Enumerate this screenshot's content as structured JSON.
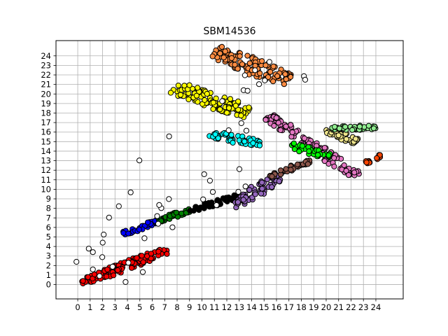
{
  "chart_data": {
    "type": "scatter",
    "title": "SBM14536",
    "xlabel": "",
    "ylabel": "",
    "xlim": [
      -1.75,
      26.2
    ],
    "ylim": [
      -1.5,
      25.6
    ],
    "x_ticks": [
      0,
      1,
      2,
      3,
      4,
      5,
      6,
      7,
      8,
      9,
      10,
      11,
      12,
      13,
      14,
      15,
      16,
      17,
      18,
      19,
      20,
      21,
      22,
      23,
      24
    ],
    "y_ticks": [
      0,
      1,
      2,
      3,
      4,
      5,
      6,
      7,
      8,
      9,
      10,
      11,
      12,
      13,
      14,
      15,
      16,
      17,
      18,
      19,
      20,
      21,
      22,
      23,
      24
    ],
    "grid": true,
    "legend": "none",
    "marker_edge_color": "#000000",
    "clusters": [
      {
        "color": "#ff0000",
        "x0": 0.3,
        "y0": 0.2,
        "x1": 7.2,
        "y1": 3.6,
        "width": 1.0,
        "points": 130
      },
      {
        "color": "#0000ff",
        "x0": 3.6,
        "y0": 5.3,
        "x1": 7.0,
        "y1": 6.9,
        "width": 0.55,
        "points": 45
      },
      {
        "color": "#008000",
        "x0": 6.5,
        "y0": 6.7,
        "x1": 9.2,
        "y1": 7.9,
        "width": 0.55,
        "points": 35
      },
      {
        "color": "#000000",
        "x0": 9.0,
        "y0": 7.8,
        "x1": 13.0,
        "y1": 9.3,
        "width": 0.6,
        "points": 45
      },
      {
        "color": "#9467bd",
        "x0": 12.6,
        "y0": 8.2,
        "x1": 16.2,
        "y1": 11.4,
        "width": 1.3,
        "points": 70
      },
      {
        "color": "#8c564b",
        "x0": 15.5,
        "y0": 11.4,
        "x1": 18.8,
        "y1": 13.0,
        "width": 0.55,
        "points": 35
      },
      {
        "color": "#e377c2",
        "x0": 15.3,
        "y0": 17.7,
        "x1": 22.5,
        "y1": 11.4,
        "width": 1.3,
        "points": 120
      },
      {
        "color": "#00ff00",
        "x0": 17.2,
        "y0": 14.6,
        "x1": 20.5,
        "y1": 13.4,
        "width": 0.9,
        "points": 45
      },
      {
        "color": "#f0e68c",
        "x0": 20.0,
        "y0": 16.2,
        "x1": 22.5,
        "y1": 15.0,
        "width": 0.9,
        "points": 40
      },
      {
        "color": "#90ee90",
        "x0": 20.4,
        "y0": 16.4,
        "x1": 24.1,
        "y1": 16.5,
        "width": 0.5,
        "points": 45
      },
      {
        "color": "#ff4500",
        "x0": 23.2,
        "y0": 12.8,
        "x1": 24.5,
        "y1": 13.6,
        "width": 0.4,
        "points": 20
      },
      {
        "color": "#00ffff",
        "x0": 10.6,
        "y0": 15.8,
        "x1": 14.7,
        "y1": 14.8,
        "width": 0.9,
        "points": 55
      },
      {
        "color": "#ffff00",
        "x0": 7.7,
        "y0": 20.7,
        "x1": 13.7,
        "y1": 18.1,
        "width": 1.8,
        "points": 120
      },
      {
        "color": "#ff8c42",
        "x0": 11.0,
        "y0": 24.5,
        "x1": 17.1,
        "y1": 21.4,
        "width": 1.9,
        "points": 120
      },
      {
        "color": "#ffffff",
        "x0": 1.5,
        "y0": 0.5,
        "x1": 17.2,
        "y1": 23.0,
        "width": 9.0,
        "points": 45
      }
    ]
  }
}
